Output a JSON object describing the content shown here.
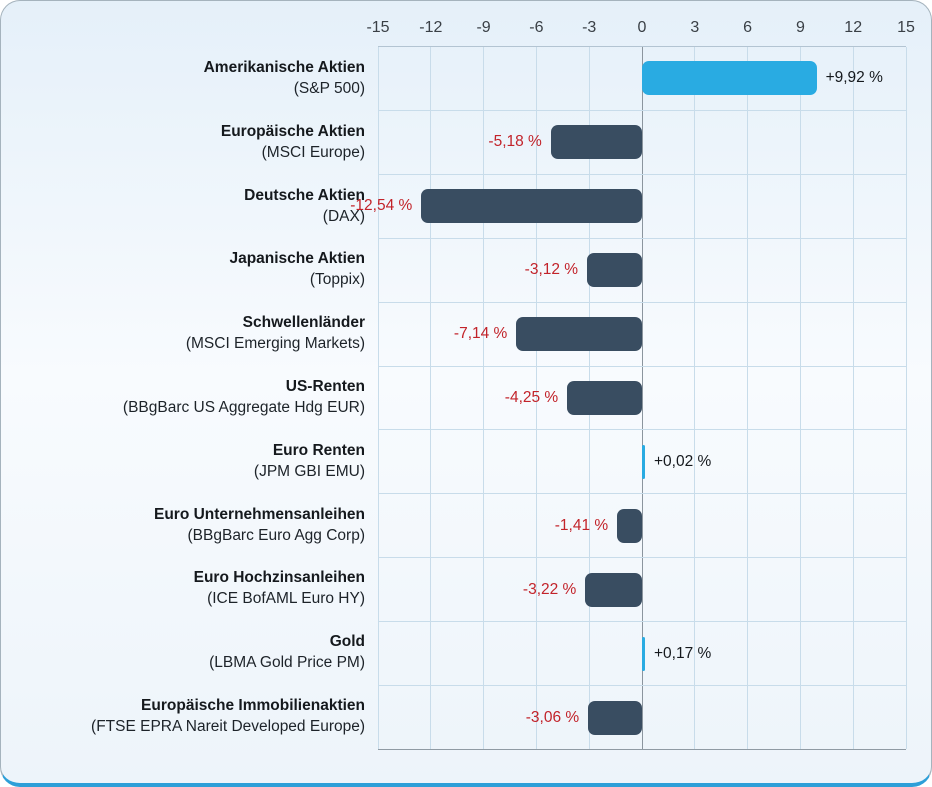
{
  "card": {
    "bottom_accent_color": "#2d9fd8"
  },
  "chart_data": {
    "type": "bar",
    "orientation": "horizontal",
    "title": "",
    "xlabel": "",
    "ylabel": "",
    "xlim": [
      -15,
      15
    ],
    "tick_step": 3,
    "ticks": [
      -15,
      -12,
      -9,
      -6,
      -3,
      0,
      3,
      6,
      9,
      12,
      15
    ],
    "grid": true,
    "legend": false,
    "value_suffix": "%",
    "decimal_separator": ",",
    "colors": {
      "positive_bar": "#29abe2",
      "negative_bar": "#394d61",
      "positive_label": "#15191d",
      "negative_label": "#c2232a",
      "gridline": "#c8dcea",
      "accent_bottom_line": "#2d9fd8"
    },
    "rows": [
      {
        "name": "Amerikanische Aktien",
        "sub": "(S&P 500)",
        "value": 9.92,
        "label": "+9,92 %"
      },
      {
        "name": "Europäische Aktien",
        "sub": "(MSCI Europe)",
        "value": -5.18,
        "label": "-5,18 %"
      },
      {
        "name": "Deutsche Aktien",
        "sub": "(DAX)",
        "value": -12.54,
        "label": "-12,54 %"
      },
      {
        "name": "Japanische Aktien",
        "sub": "(Toppix)",
        "value": -3.12,
        "label": "-3,12 %"
      },
      {
        "name": "Schwellenländer",
        "sub": "(MSCI Emerging Markets)",
        "value": -7.14,
        "label": "-7,14 %"
      },
      {
        "name": "US-Renten",
        "sub": "(BBgBarc US Aggregate Hdg EUR)",
        "value": -4.25,
        "label": "-4,25 %"
      },
      {
        "name": "Euro Renten",
        "sub": "(JPM GBI EMU)",
        "value": 0.02,
        "label": "+0,02 %"
      },
      {
        "name": "Euro Unternehmensanleihen",
        "sub": "(BBgBarc Euro Agg Corp)",
        "value": -1.41,
        "label": "-1,41 %"
      },
      {
        "name": "Euro Hochzinsanleihen",
        "sub": "(ICE BofAML Euro HY)",
        "value": -3.22,
        "label": "-3,22 %"
      },
      {
        "name": "Gold",
        "sub": "(LBMA Gold Price PM)",
        "value": 0.17,
        "label": "+0,17 %"
      },
      {
        "name": "Europäische Immobilienaktien",
        "sub": "(FTSE EPRA Nareit Developed Europe)",
        "value": -3.06,
        "label": "-3,06 %"
      }
    ]
  }
}
